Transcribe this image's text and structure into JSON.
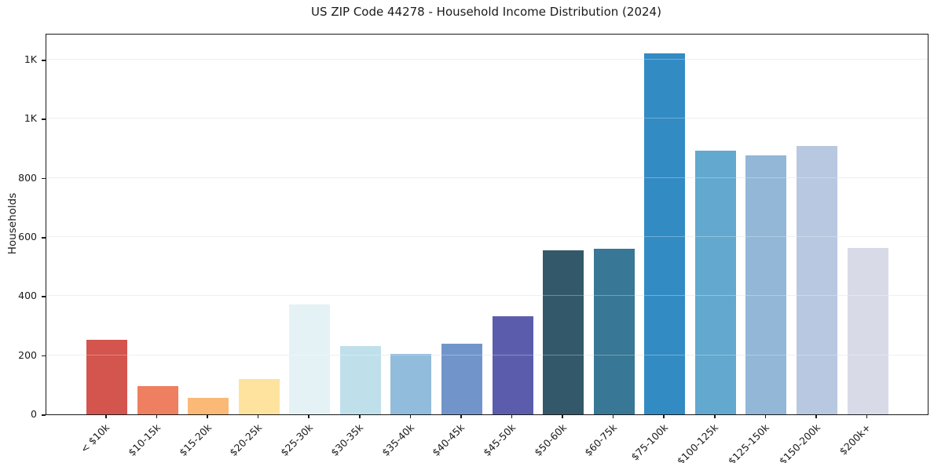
{
  "title": "US ZIP Code 44278 - Household Income Distribution (2024)",
  "chart_data": {
    "type": "bar",
    "title": "US ZIP Code 44278 - Household Income Distribution (2024)",
    "xlabel": "",
    "ylabel": "Households",
    "categories": [
      "< $10k",
      "$10-15k",
      "$15-20k",
      "$20-25k",
      "$25-30k",
      "$30-35k",
      "$35-40k",
      "$40-45k",
      "$45-50k",
      "$50-60k",
      "$60-75k",
      "$75-100k",
      "$100-125k",
      "$125-150k",
      "$150-200k",
      "$200k+"
    ],
    "values": [
      252,
      95,
      56,
      120,
      372,
      230,
      205,
      240,
      333,
      554,
      561,
      1220,
      893,
      876,
      909,
      563
    ],
    "bar_colors": [
      "#d4544e",
      "#ee7f60",
      "#fbb977",
      "#fde39e",
      "#e4f2f6",
      "#bfe0eb",
      "#92bcdb",
      "#7195ca",
      "#5b5dac",
      "#33586a",
      "#387795",
      "#338bc4",
      "#63a8ce",
      "#92b7d7",
      "#b8c8e0",
      "#d8dae8"
    ],
    "y_ticks": [
      {
        "value": 0,
        "label": "0"
      },
      {
        "value": 200,
        "label": "200"
      },
      {
        "value": 400,
        "label": "400"
      },
      {
        "value": 600,
        "label": "600"
      },
      {
        "value": 800,
        "label": "800"
      },
      {
        "value": 1000,
        "label": "1K"
      },
      {
        "value": 1200,
        "label": "1K"
      }
    ],
    "ylim": [
      0,
      1285
    ],
    "grid": "horizontal",
    "gridline_color": "#e9e9e9",
    "legend": "none",
    "background_color": "#ffffff",
    "spine_color": "#1a1a1a",
    "x_labels_rotation_deg": 45
  }
}
